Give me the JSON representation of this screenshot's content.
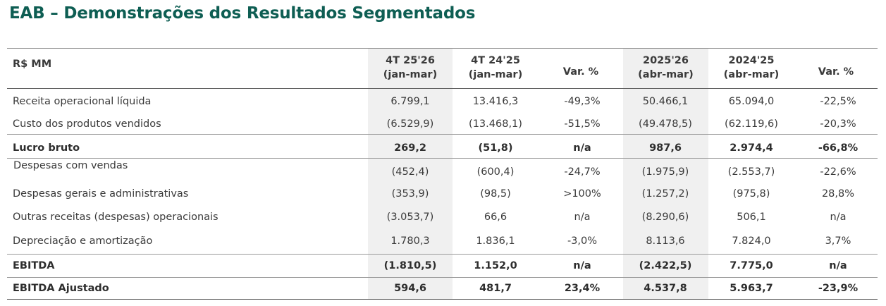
{
  "title": "EAB – Demonstrações dos Resultados Segmentados",
  "table": {
    "unit_label": "R$ MM",
    "columns": [
      {
        "line1": "4T 25'26",
        "line2": "(jan-mar)"
      },
      {
        "line1": "4T 24'25",
        "line2": "(jan-mar)"
      },
      {
        "line1": "Var. %",
        "line2": ""
      },
      {
        "line1": "2025'26",
        "line2": "(abr-mar)"
      },
      {
        "line1": "2024'25",
        "line2": "(abr-mar)"
      },
      {
        "line1": "Var. %",
        "line2": ""
      }
    ],
    "rows": [
      {
        "label": "Receita operacional líquida",
        "bold": false,
        "values": [
          "6.799,1",
          "13.416,3",
          "-49,3%",
          "50.466,1",
          "65.094,0",
          "-22,5%"
        ]
      },
      {
        "label": "Custo dos produtos vendidos",
        "bold": false,
        "values": [
          "(6.529,9)",
          "(13.468,1)",
          "-51,5%",
          "(49.478,5)",
          "(62.119,6)",
          "-20,3%"
        ]
      },
      {
        "label": "Lucro bruto",
        "bold": true,
        "values": [
          "269,2",
          "(51,8)",
          "n/a",
          "987,6",
          "2.974,4",
          "-66,8%"
        ]
      },
      {
        "label": "Despesas com vendas",
        "bold": false,
        "values": [
          "(452,4)",
          "(600,4)",
          "-24,7%",
          "(1.975,9)",
          "(2.553,7)",
          "-22,6%"
        ]
      },
      {
        "label": "Despesas gerais e administrativas",
        "bold": false,
        "values": [
          "(353,9)",
          "(98,5)",
          ">100%",
          "(1.257,2)",
          "(975,8)",
          "28,8%"
        ]
      },
      {
        "label": "Outras receitas (despesas) operacionais",
        "bold": false,
        "values": [
          "(3.053,7)",
          "66,6",
          "n/a",
          "(8.290,6)",
          "506,1",
          "n/a"
        ]
      },
      {
        "label": "Depreciação e amortização",
        "bold": false,
        "values": [
          "1.780,3",
          "1.836,1",
          "-3,0%",
          "8.113,6",
          "7.824,0",
          "3,7%"
        ]
      },
      {
        "label": "EBITDA",
        "bold": true,
        "values": [
          "(1.810,5)",
          "1.152,0",
          "n/a",
          "(2.422,5)",
          "7.775,0",
          "n/a"
        ]
      },
      {
        "label": "EBITDA Ajustado",
        "bold": true,
        "values": [
          "594,6",
          "481,7",
          "23,4%",
          "4.537,8",
          "5.963,7",
          "-23,9%"
        ]
      }
    ]
  }
}
